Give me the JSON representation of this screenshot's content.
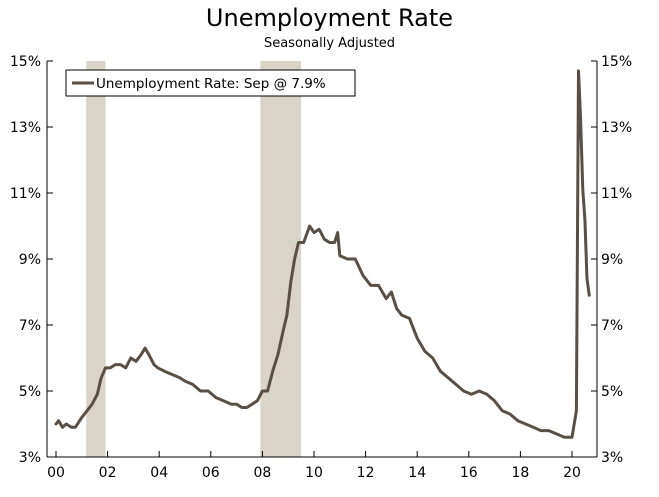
{
  "chart_data": {
    "type": "line",
    "title": "Unemployment Rate",
    "subtitle": "Seasonally Adjusted",
    "xlabel": "",
    "ylabel": "",
    "xlim": [
      2000,
      2021.0
    ],
    "ylim": [
      3,
      15
    ],
    "y_ticks": [
      {
        "value": 3,
        "label": "3%"
      },
      {
        "value": 5,
        "label": "5%"
      },
      {
        "value": 7,
        "label": "7%"
      },
      {
        "value": 9,
        "label": "9%"
      },
      {
        "value": 11,
        "label": "11%"
      },
      {
        "value": 13,
        "label": "13%"
      },
      {
        "value": 15,
        "label": "15%"
      }
    ],
    "x_ticks": [
      {
        "value": 2000,
        "label": "00"
      },
      {
        "value": 2002,
        "label": "02"
      },
      {
        "value": 2004,
        "label": "04"
      },
      {
        "value": 2006,
        "label": "06"
      },
      {
        "value": 2008,
        "label": "08"
      },
      {
        "value": 2010,
        "label": "10"
      },
      {
        "value": 2012,
        "label": "12"
      },
      {
        "value": 2014,
        "label": "14"
      },
      {
        "value": 2016,
        "label": "16"
      },
      {
        "value": 2018,
        "label": "18"
      },
      {
        "value": 2020,
        "label": "20"
      }
    ],
    "recessions": [
      {
        "start": 2001.17,
        "end": 2001.92
      },
      {
        "start": 2007.92,
        "end": 2009.5
      }
    ],
    "legend": {
      "position": "top-left",
      "label": "Unemployment Rate: Sep @ 7.9%"
    },
    "colors": {
      "series": "#5a4f45",
      "recession": "#d9d4c7",
      "axis": "#000000"
    },
    "series": [
      {
        "name": "Unemployment Rate: Sep @ 7.9%",
        "x": [
          2000.0,
          2000.1,
          2000.25,
          2000.4,
          2000.6,
          2000.75,
          2001.0,
          2001.2,
          2001.4,
          2001.6,
          2001.75,
          2001.92,
          2002.1,
          2002.3,
          2002.5,
          2002.7,
          2002.9,
          2003.1,
          2003.3,
          2003.45,
          2003.6,
          2003.8,
          2003.95,
          2004.2,
          2004.5,
          2004.8,
          2005.0,
          2005.3,
          2005.6,
          2005.9,
          2006.2,
          2006.5,
          2006.8,
          2007.0,
          2007.2,
          2007.4,
          2007.6,
          2007.8,
          2008.0,
          2008.2,
          2008.4,
          2008.6,
          2008.8,
          2008.95,
          2009.1,
          2009.25,
          2009.4,
          2009.6,
          2009.83,
          2010.0,
          2010.2,
          2010.4,
          2010.6,
          2010.8,
          2010.92,
          2011.0,
          2011.3,
          2011.6,
          2011.9,
          2012.2,
          2012.5,
          2012.8,
          2013.0,
          2013.2,
          2013.4,
          2013.7,
          2014.0,
          2014.3,
          2014.6,
          2014.9,
          2015.2,
          2015.5,
          2015.8,
          2016.1,
          2016.4,
          2016.7,
          2017.0,
          2017.3,
          2017.6,
          2017.9,
          2018.2,
          2018.5,
          2018.8,
          2019.1,
          2019.4,
          2019.7,
          2020.0,
          2020.17,
          2020.25,
          2020.33,
          2020.42,
          2020.5,
          2020.58,
          2020.67
        ],
        "values": [
          4.0,
          4.1,
          3.9,
          4.0,
          3.9,
          3.9,
          4.2,
          4.4,
          4.6,
          4.9,
          5.4,
          5.7,
          5.7,
          5.8,
          5.8,
          5.7,
          6.0,
          5.9,
          6.1,
          6.3,
          6.1,
          5.8,
          5.7,
          5.6,
          5.5,
          5.4,
          5.3,
          5.2,
          5.0,
          5.0,
          4.8,
          4.7,
          4.6,
          4.6,
          4.5,
          4.5,
          4.6,
          4.7,
          5.0,
          5.0,
          5.6,
          6.1,
          6.8,
          7.3,
          8.3,
          9.0,
          9.5,
          9.5,
          10.0,
          9.8,
          9.9,
          9.6,
          9.5,
          9.5,
          9.8,
          9.1,
          9.0,
          9.0,
          8.5,
          8.2,
          8.2,
          7.8,
          8.0,
          7.5,
          7.3,
          7.2,
          6.6,
          6.2,
          6.0,
          5.6,
          5.4,
          5.2,
          5.0,
          4.9,
          5.0,
          4.9,
          4.7,
          4.4,
          4.3,
          4.1,
          4.0,
          3.9,
          3.8,
          3.8,
          3.7,
          3.6,
          3.6,
          4.4,
          14.7,
          13.3,
          11.1,
          10.2,
          8.4,
          7.9
        ]
      }
    ]
  }
}
